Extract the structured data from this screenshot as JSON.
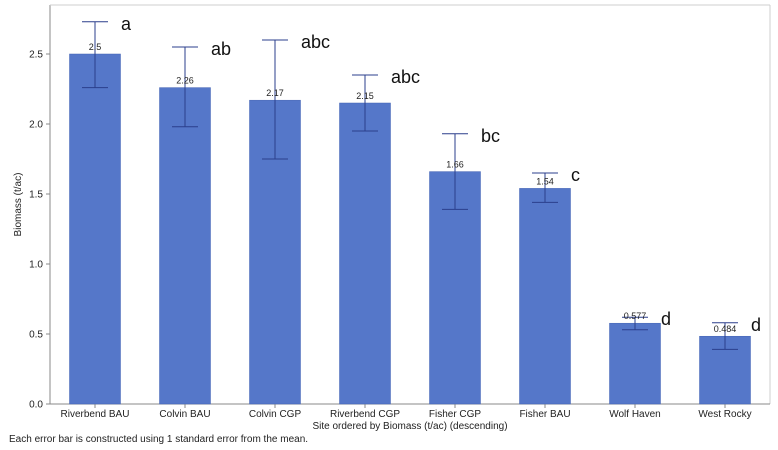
{
  "chart_data": {
    "type": "bar",
    "categories": [
      "Riverbend BAU",
      "Colvin BAU",
      "Colvin CGP",
      "Riverbend CGP",
      "Fisher CGP",
      "Fisher BAU",
      "Wolf Haven",
      "West Rocky"
    ],
    "values": [
      2.5,
      2.26,
      2.17,
      2.15,
      1.66,
      1.54,
      0.577,
      0.484
    ],
    "data_labels": [
      "2.5",
      "2.26",
      "2.17",
      "2.15",
      "1.66",
      "1.54",
      "0.577",
      "0.484"
    ],
    "error_low": [
      2.26,
      1.98,
      1.75,
      1.95,
      1.39,
      1.44,
      0.53,
      0.39
    ],
    "error_high": [
      2.73,
      2.55,
      2.6,
      2.35,
      1.93,
      1.65,
      0.62,
      0.58
    ],
    "significance_letters": [
      "a",
      "ab",
      "abc",
      "abc",
      "bc",
      "c",
      "d",
      "d"
    ],
    "xlabel": "Site ordered by Biomass (t/ac) (descending)",
    "ylabel": "Biomass (t/ac)",
    "ylim": [
      0,
      2.85
    ],
    "yticks": [
      "0.0",
      "0.5",
      "1.0",
      "1.5",
      "2.0",
      "2.5"
    ],
    "grid": false,
    "bar_color": "#5577c9",
    "error_bar_color": "#2b3f8c"
  },
  "footnote": "Each error bar is constructed using 1 standard error from the mean."
}
